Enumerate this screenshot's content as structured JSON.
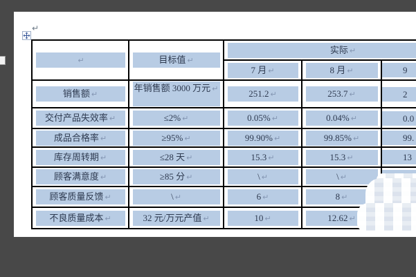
{
  "marks": {
    "pilcrow": "↵"
  },
  "colors": {
    "app_background": "#484848",
    "page_background": "#ffffff",
    "cell_shading": "#b8cce4",
    "table_border": "#000000",
    "text": "#2e3a50"
  },
  "table": {
    "corner": "",
    "target_header": "目标值",
    "actual_header": "实际",
    "months": [
      "7 月",
      "8 月",
      "9"
    ],
    "rows": [
      {
        "label": "销售额",
        "target": "年销售额 3000 万元",
        "m7": "251.2",
        "m8": "253.7",
        "m9": "2"
      },
      {
        "label": "交付产品失效率",
        "target": "≤2%",
        "m7": "0.05%",
        "m8": "0.04%",
        "m9": "0.0"
      },
      {
        "label": "成品合格率",
        "target": "≥95%",
        "m7": "99.90%",
        "m8": "99.85%",
        "m9": "99."
      },
      {
        "label": "库存周转期",
        "target": "≤28 天",
        "m7": "15.3",
        "m8": "15.3",
        "m9": "13"
      },
      {
        "label": "顾客满意度",
        "target": "≥85 分",
        "m7": "\\",
        "m8": "\\",
        "m9": ""
      },
      {
        "label": "顾客质量反馈",
        "target": "\\",
        "m7": "6",
        "m8": "8",
        "m9": ""
      },
      {
        "label": "不良质量成本",
        "target": "32 元/万元产值",
        "m7": "10",
        "m8": "12.62",
        "m9": ""
      }
    ]
  }
}
